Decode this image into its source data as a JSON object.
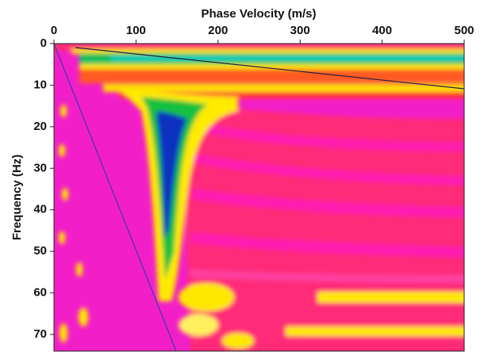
{
  "chart_data": {
    "type": "heatmap",
    "xlabel": "Phase Velocity (m/s)",
    "ylabel": "Frequency (Hz)",
    "xlim": [
      0,
      500
    ],
    "xticks": [
      0,
      100,
      200,
      300,
      400,
      500
    ],
    "ylim": [
      0,
      74
    ],
    "yticks": [
      0,
      10,
      20,
      30,
      40,
      50,
      60,
      70
    ],
    "y_inverted": true,
    "x_axis_position": "top"
  }
}
